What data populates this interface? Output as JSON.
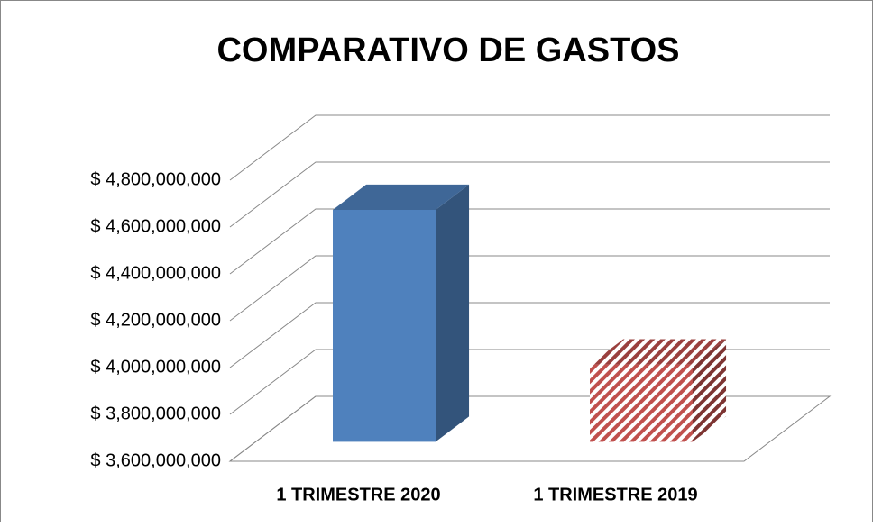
{
  "chart_data": {
    "type": "bar3d",
    "title": "COMPARATIVO DE GASTOS",
    "categories": [
      "1 TRIMESTRE 2020",
      "1 TRIMESTRE 2019"
    ],
    "values": [
      4590000000,
      3930000000
    ],
    "colors": [
      "#4f81bd",
      "#c0504d"
    ],
    "fills": [
      "solid",
      "hatch"
    ],
    "ylim": [
      3600000000,
      4800000000
    ],
    "yticks": [
      {
        "value": 3600000000,
        "label": "$ 3,600,000,000"
      },
      {
        "value": 3800000000,
        "label": "$ 3,800,000,000"
      },
      {
        "value": 4000000000,
        "label": "$ 4,000,000,000"
      },
      {
        "value": 4200000000,
        "label": "$ 4,200,000,000"
      },
      {
        "value": 4400000000,
        "label": "$ 4,400,000,000"
      },
      {
        "value": 4600000000,
        "label": "$ 4,600,000,000"
      },
      {
        "value": 4800000000,
        "label": "$ 4,800,000,000"
      }
    ],
    "grid": true
  }
}
